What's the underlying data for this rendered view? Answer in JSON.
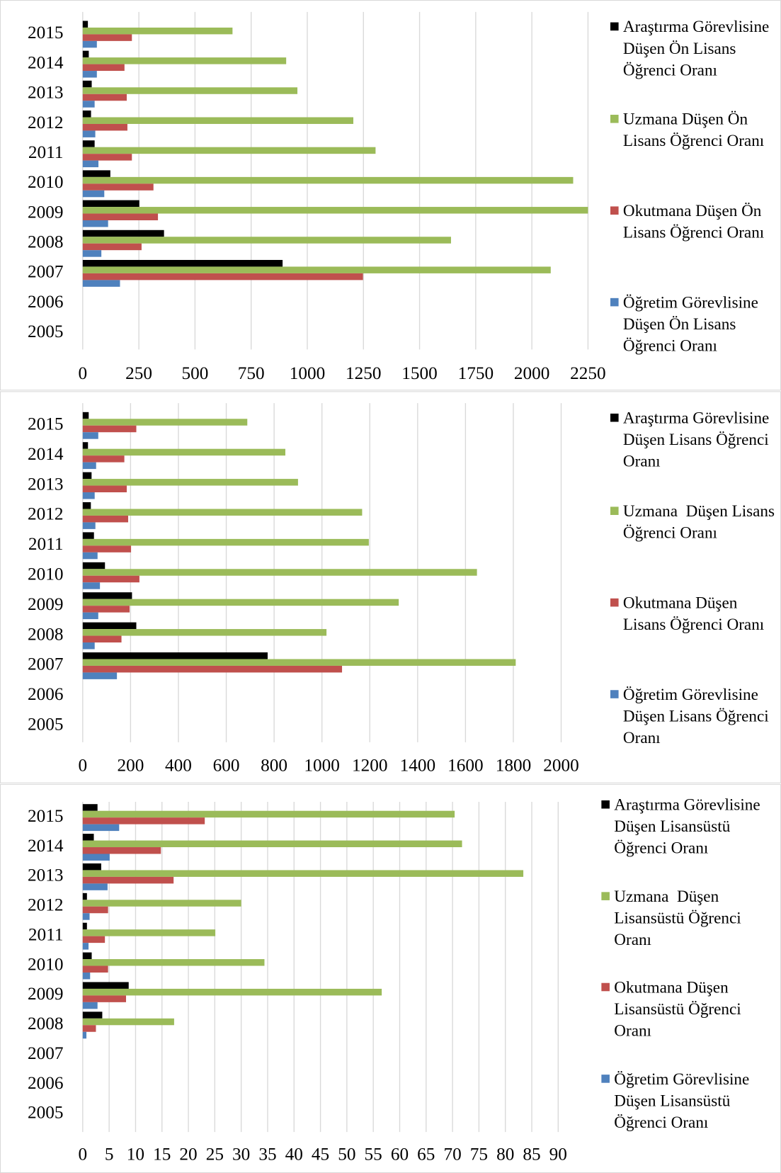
{
  "chart_data": [
    {
      "type": "bar",
      "orientation": "horizontal",
      "grid": true,
      "legend": "right",
      "categories": [
        "2005",
        "2006",
        "2007",
        "2008",
        "2009",
        "2010",
        "2011",
        "2012",
        "2013",
        "2014",
        "2015"
      ],
      "xlim": [
        0,
        2250
      ],
      "xticks": [
        0,
        250,
        500,
        750,
        1000,
        1250,
        1500,
        1750,
        2000,
        2250
      ],
      "series": [
        {
          "name": "Araştırma Görevlisine Düşen Ön Lisans Öğrenci Oranı",
          "color": "#000000",
          "values": [
            null,
            null,
            890,
            362,
            252,
            123,
            53,
            37,
            40,
            27,
            23
          ]
        },
        {
          "name": "Uzmana Düşen Ön Lisans Öğrenci Oranı",
          "color": "#9bbb59",
          "values": [
            null,
            null,
            2084,
            1640,
            2250,
            2184,
            1304,
            1205,
            956,
            906,
            667
          ]
        },
        {
          "name": "Okutmana Düşen Ön Lisans Öğrenci Oranı",
          "color": "#c0504d",
          "values": [
            null,
            null,
            1248,
            262,
            335,
            315,
            219,
            199,
            196,
            186,
            219
          ]
        },
        {
          "name": "Öğretim Görevlisine Düşen Ön Lisans Öğrenci Oranı",
          "color": "#4f81bd",
          "values": [
            null,
            null,
            166,
            83,
            113,
            96,
            70,
            56,
            53,
            63,
            63
          ]
        }
      ]
    },
    {
      "type": "bar",
      "orientation": "horizontal",
      "grid": true,
      "legend": "right",
      "categories": [
        "2005",
        "2006",
        "2007",
        "2008",
        "2009",
        "2010",
        "2011",
        "2012",
        "2013",
        "2014",
        "2015"
      ],
      "xlim": [
        0,
        2000
      ],
      "xticks": [
        0,
        200,
        400,
        600,
        800,
        1000,
        1200,
        1400,
        1600,
        1800,
        2000
      ],
      "series": [
        {
          "name": "Araştırma Görevlisine Düşen Lisans Öğrenci Oranı",
          "color": "#000000",
          "values": [
            null,
            null,
            773,
            224,
            206,
            93,
            47,
            34,
            37,
            22,
            25
          ]
        },
        {
          "name": "Uzmana  Düşen Lisans Öğrenci Oranı",
          "color": "#9bbb59",
          "values": [
            null,
            null,
            1810,
            1019,
            1321,
            1648,
            1196,
            1168,
            900,
            847,
            688
          ]
        },
        {
          "name": "Okutmana Düşen Lisans Öğrenci Oranı",
          "color": "#c0504d",
          "values": [
            null,
            null,
            1084,
            162,
            196,
            237,
            202,
            190,
            184,
            174,
            224
          ]
        },
        {
          "name": "Öğretim Görevlisine Düşen Lisans Öğrenci Oranı",
          "color": "#4f81bd",
          "values": [
            null,
            null,
            143,
            50,
            65,
            72,
            62,
            53,
            50,
            56,
            65
          ]
        }
      ]
    },
    {
      "type": "bar",
      "orientation": "horizontal",
      "grid": true,
      "legend": "right",
      "categories": [
        "2005",
        "2006",
        "2007",
        "2008",
        "2009",
        "2010",
        "2011",
        "2012",
        "2013",
        "2014",
        "2015"
      ],
      "xlim": [
        0,
        90
      ],
      "xticks": [
        0,
        5,
        10,
        15,
        20,
        25,
        30,
        35,
        40,
        45,
        50,
        55,
        60,
        65,
        70,
        75,
        80,
        85,
        90
      ],
      "series": [
        {
          "name": "Araştırma Görevlisine Düşen Lisansüstü Öğrenci Oranı",
          "color": "#000000",
          "values": [
            null,
            null,
            null,
            3.7,
            8.7,
            1.7,
            0.8,
            0.8,
            3.5,
            2.1,
            2.8
          ]
        },
        {
          "name": "Uzmana  Düşen Lisansüstü Öğrenci Oranı",
          "color": "#9bbb59",
          "values": [
            null,
            null,
            null,
            17.3,
            56.6,
            34.4,
            25.1,
            30,
            83.4,
            71.8,
            70.4
          ]
        },
        {
          "name": "Okutmana Düşen Lisansüstü Öğrenci Oranı",
          "color": "#c0504d",
          "values": [
            null,
            null,
            null,
            2.5,
            8.2,
            4.8,
            4.2,
            4.8,
            17.2,
            14.8,
            23.1
          ]
        },
        {
          "name": "Öğretim Görevlisine Düşen Lisansüstü Öğrenci Oranı",
          "color": "#4f81bd",
          "values": [
            null,
            null,
            null,
            0.7,
            2.8,
            1.4,
            1.1,
            1.3,
            4.7,
            5.1,
            6.9
          ]
        }
      ]
    }
  ]
}
